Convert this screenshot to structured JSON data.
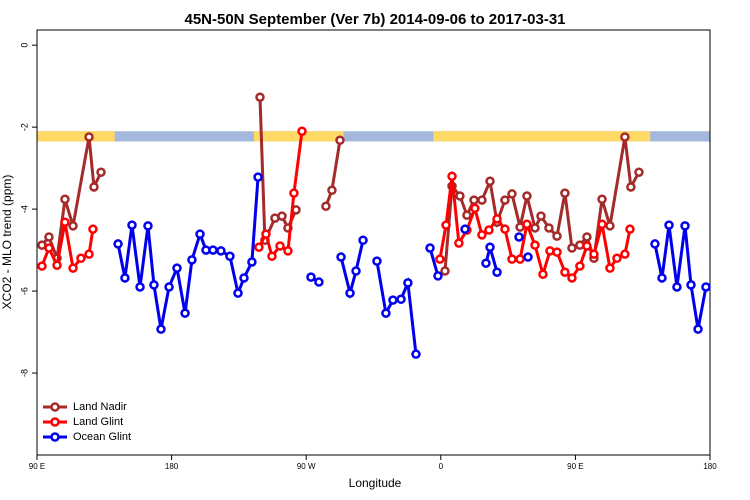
{
  "chart_data": {
    "type": "line",
    "title": "45N-50N September (Ver 7b)   2014-09-06 to 2017-03-31",
    "x_label": "Longitude",
    "y_label": "XCO2 - MLO trend (ppm)",
    "xlim": [
      90,
      540
    ],
    "xticks": [
      {
        "value": 90,
        "label": "90 E"
      },
      {
        "value": 180,
        "label": "180"
      },
      {
        "value": 270,
        "label": "90 W"
      },
      {
        "value": 360,
        "label": "0"
      },
      {
        "value": 450,
        "label": "90 E"
      },
      {
        "value": 540,
        "label": "180"
      }
    ],
    "ylim": [
      -10,
      0.37
    ],
    "yticks": [
      0,
      -2,
      -4,
      -6,
      -8
    ],
    "legend": "bottom-left",
    "surface_band": {
      "ylim": [
        -2.35,
        -2.1
      ],
      "land_color": "#ffd966",
      "ocean_color": "#a3b8dc",
      "land": [
        [
          90,
          142
        ],
        [
          235,
          295
        ],
        [
          355,
          500
        ]
      ]
    },
    "series": [
      {
        "name": "Land Nadir",
        "color": "#a52a2a",
        "x": [
          93.3,
          98.0,
          103.4,
          108.7,
          114.1,
          124.8,
          128.1,
          132.8,
          null,
          239.1,
          242.4,
          249.1,
          253.8,
          257.8,
          263.2,
          null,
          283.2,
          287.2,
          292.6,
          null,
          362.8,
          367.5,
          372.8,
          377.5,
          382.2,
          387.5,
          392.9,
          397.6,
          402.9,
          407.6,
          413.0,
          417.6,
          423.0,
          427.0,
          432.3,
          437.7,
          443.0,
          447.7,
          453.0,
          457.7,
          462.4,
          467.8,
          473.1,
          483.1,
          487.1,
          492.5
        ],
        "values": [
          -4.88,
          -4.68,
          -5.2,
          -3.76,
          -4.41,
          -2.24,
          -3.46,
          -3.1,
          null,
          -1.27,
          -4.76,
          -4.22,
          -4.17,
          -4.46,
          -4.02,
          null,
          -3.93,
          -3.54,
          -2.32,
          null,
          -5.51,
          -3.44,
          -3.68,
          -4.15,
          -3.78,
          -3.78,
          -3.32,
          -4.32,
          -3.78,
          -3.63,
          -4.44,
          -3.68,
          -4.46,
          -4.17,
          -4.46,
          -4.66,
          -3.61,
          -4.95,
          -4.88,
          -4.68,
          -5.2,
          -3.76,
          -4.41,
          -2.24,
          -3.46,
          -3.1
        ]
      },
      {
        "name": "Land Glint",
        "color": "#ff0000",
        "x": [
          93.3,
          98.0,
          103.4,
          108.7,
          114.1,
          119.4,
          124.8,
          127.4,
          null,
          238.4,
          243.1,
          247.1,
          252.5,
          257.8,
          261.8,
          267.2,
          null,
          359.4,
          363.5,
          367.5,
          372.1,
          377.5,
          382.8,
          387.5,
          392.2,
          397.6,
          402.9,
          407.6,
          413.0,
          417.6,
          423.0,
          428.3,
          433.0,
          437.7,
          443.0,
          447.7,
          453.0,
          457.7,
          462.4,
          467.8,
          473.1,
          477.8,
          483.1,
          486.5
        ],
        "values": [
          -5.39,
          -4.95,
          -5.37,
          -4.32,
          -5.44,
          -5.2,
          -5.1,
          -4.49,
          null,
          -4.93,
          -4.61,
          -5.15,
          -4.9,
          -5.02,
          -3.61,
          -2.1,
          null,
          -5.22,
          -4.39,
          -3.2,
          -4.83,
          -4.51,
          -3.98,
          -4.63,
          -4.51,
          -4.24,
          -4.49,
          -5.22,
          -5.22,
          -4.37,
          -4.88,
          -5.59,
          -5.02,
          -5.05,
          -5.54,
          -5.68,
          -5.39,
          -4.9,
          -5.1,
          -4.37,
          -5.44,
          -5.2,
          -5.1,
          -4.49
        ]
      },
      {
        "name": "Ocean Glint",
        "color": "#0000ee",
        "x": [
          144.2,
          148.8,
          153.5,
          158.9,
          164.2,
          168.2,
          172.9,
          178.3,
          183.6,
          189.0,
          193.6,
          199.0,
          203.0,
          207.7,
          213.0,
          219.0,
          224.4,
          228.4,
          233.7,
          237.8,
          null,
          273.2,
          278.5,
          null,
          293.3,
          299.3,
          303.3,
          308.0,
          null,
          317.3,
          323.3,
          328.0,
          333.4,
          338.0,
          343.4,
          null,
          352.8,
          358.1,
          null,
          376.2,
          null,
          390.2,
          392.9,
          397.6,
          null,
          412.3,
          null,
          418.3,
          null,
          503.2,
          507.9,
          512.6,
          517.9,
          523.3,
          527.3,
          532.0,
          537.3
        ],
        "values": [
          -4.85,
          -5.68,
          -4.39,
          -5.9,
          -4.41,
          -5.85,
          -6.93,
          -5.9,
          -5.44,
          -6.54,
          -5.24,
          -4.61,
          -5.0,
          -5.0,
          -5.02,
          -5.15,
          -6.05,
          -5.68,
          -5.29,
          -3.22,
          null,
          -5.66,
          -5.78,
          null,
          -5.17,
          -6.05,
          -5.51,
          -4.76,
          null,
          -5.27,
          -6.54,
          -6.22,
          -6.2,
          -5.8,
          -7.54,
          null,
          -4.95,
          -5.63,
          null,
          -4.49,
          null,
          -5.32,
          -4.93,
          -5.54,
          null,
          -4.68,
          null,
          -5.17,
          null,
          -4.85,
          -5.68,
          -4.39,
          -5.9,
          -4.41,
          -5.85,
          -6.93,
          -5.9
        ]
      }
    ]
  }
}
